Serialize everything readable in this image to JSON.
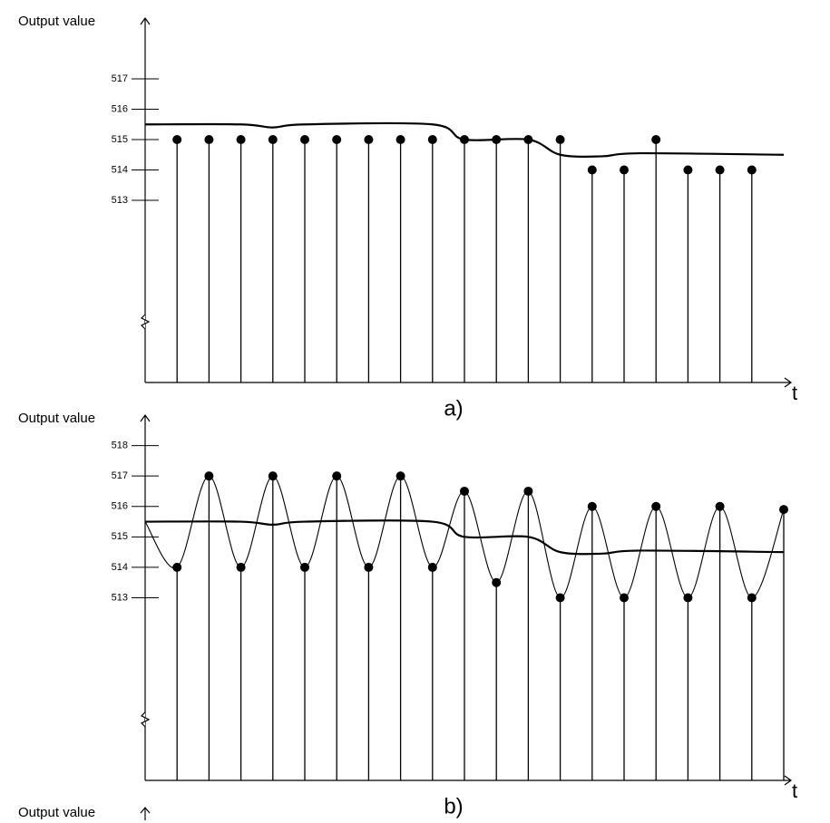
{
  "chart_data": [
    {
      "type": "stem",
      "caption": "a)",
      "y_label": "Output value",
      "x_label": "t",
      "color": "#000000",
      "xlim": [
        0,
        20
      ],
      "ylim": [
        507,
        519
      ],
      "yticks": [
        513,
        514,
        515,
        516,
        517
      ],
      "axis_break": 509,
      "reference": {
        "x": [
          0,
          3,
          4,
          5,
          9,
          10,
          12,
          13,
          14.3,
          15.5,
          20
        ],
        "values": [
          515.5,
          515.5,
          515.4,
          515.5,
          515.5,
          515,
          515,
          514.5,
          514.45,
          514.55,
          514.5
        ]
      },
      "samples": {
        "x": [
          1,
          2,
          3,
          4,
          5,
          6,
          7,
          8,
          9,
          10,
          11,
          12,
          13,
          14,
          15,
          16,
          17,
          18,
          19
        ],
        "values": [
          515,
          515,
          515,
          515,
          515,
          515,
          515,
          515,
          515,
          515,
          515,
          515,
          515,
          514,
          514,
          515,
          514,
          514,
          514
        ]
      }
    },
    {
      "type": "stem",
      "caption": "b)",
      "y_label": "Output value",
      "x_label": "t",
      "color": "#000000",
      "xlim": [
        0,
        20
      ],
      "ylim": [
        507,
        519
      ],
      "yticks": [
        513,
        514,
        515,
        516,
        517,
        518
      ],
      "axis_break": 509,
      "reference": {
        "x": [
          0,
          3,
          4,
          5,
          9,
          10,
          12,
          13,
          14.3,
          15.5,
          20
        ],
        "values": [
          515.5,
          515.5,
          515.4,
          515.5,
          515.5,
          515,
          515,
          514.5,
          514.45,
          514.55,
          514.5
        ]
      },
      "curve": {
        "x": [
          0,
          1,
          2,
          3,
          4,
          5,
          6,
          7,
          8,
          9,
          10,
          11,
          12,
          13,
          14,
          15,
          16,
          17,
          18,
          19,
          20
        ],
        "values": [
          515.5,
          514,
          517,
          514,
          517,
          514,
          517,
          514,
          517,
          514,
          516.5,
          513.5,
          516.5,
          513,
          516,
          513,
          516,
          513,
          516,
          513,
          515.9
        ]
      },
      "samples": {
        "x": [
          1,
          2,
          3,
          4,
          5,
          6,
          7,
          8,
          9,
          10,
          11,
          12,
          13,
          14,
          15,
          16,
          17,
          18,
          19,
          20
        ],
        "values": [
          514,
          517,
          514,
          517,
          514,
          517,
          514,
          517,
          514,
          516.5,
          513.5,
          516.5,
          513,
          516,
          513,
          516,
          513,
          516,
          513,
          515.9
        ]
      }
    }
  ],
  "continuation": {
    "y_label": "Output value"
  }
}
